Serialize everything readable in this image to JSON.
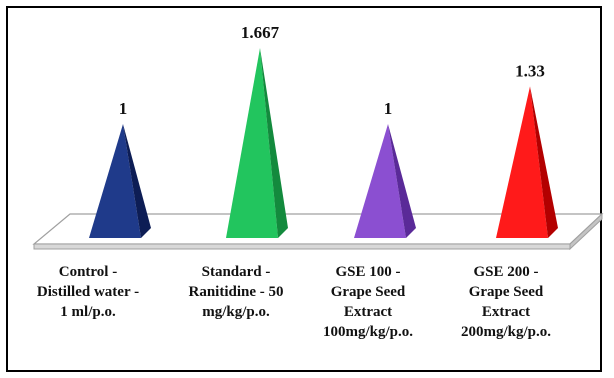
{
  "chart_data": {
    "type": "bar",
    "shape": "pyramid-3d",
    "title": "",
    "xlabel": "",
    "ylabel": "",
    "ylim": [
      0,
      1.9
    ],
    "grid": false,
    "legend": "none",
    "categories": [
      [
        "Control -",
        "Distilled water -",
        "1 ml/p.o."
      ],
      [
        "Standard -",
        "Ranitidine - 50",
        "mg/kg/p.o."
      ],
      [
        "GSE 100 -",
        "Grape Seed",
        "Extract",
        "100mg/kg/p.o."
      ],
      [
        "GSE 200 -",
        "Grape Seed",
        "Extract",
        "200mg/kg/p.o."
      ]
    ],
    "values": [
      1,
      1.667,
      1,
      1.33
    ],
    "value_labels": [
      "1",
      "1.667",
      "1",
      "1.33"
    ],
    "colors": [
      {
        "light": "#1f3a8a",
        "dark": "#0d1d55"
      },
      {
        "light": "#22c55e",
        "dark": "#138a3d"
      },
      {
        "light": "#8b4fd1",
        "dark": "#5a2a98"
      },
      {
        "light": "#ff1a1a",
        "dark": "#b30000"
      }
    ]
  }
}
